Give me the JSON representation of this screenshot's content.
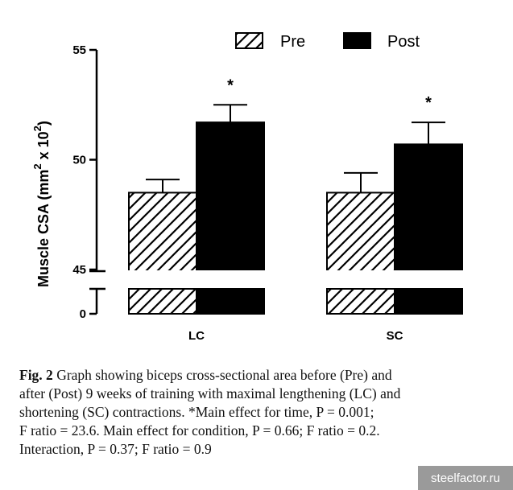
{
  "chart_data": {
    "type": "bar",
    "title": "",
    "xlabel": "",
    "ylabel": "Muscle CSA (mm",
    "ylabel_sup1": "2",
    "ylabel_mid": " x 10",
    "ylabel_sup2": "2",
    "ylabel_end": ")",
    "categories": [
      "LC",
      "SC"
    ],
    "series": [
      {
        "name": "Pre",
        "values": [
          48.5,
          48.5
        ],
        "errors": [
          0.6,
          0.9
        ],
        "pattern": "hatched",
        "color": "#ffffff"
      },
      {
        "name": "Post",
        "values": [
          51.7,
          50.7
        ],
        "errors": [
          0.8,
          1.0
        ],
        "pattern": "solid",
        "color": "#000000"
      }
    ],
    "y_ticks": [
      0,
      45,
      50,
      55
    ],
    "ylim_upper": [
      45,
      55
    ],
    "axis_break": true,
    "legend_position": "top",
    "significance_markers": [
      "*",
      "*"
    ]
  },
  "caption": {
    "fig_label": "Fig. 2",
    "line1": " Graph showing biceps cross-sectional area before (Pre) and",
    "line2": "after (Post) 9 weeks of training with maximal lengthening (LC) and",
    "line3": "shortening (SC) contractions. *Main effect for time, P = 0.001;",
    "line4": "F ratio = 23.6. Main effect for condition, P = 0.66; F ratio = 0.2.",
    "line5": "Interaction, P = 0.37; F ratio = 0.9"
  },
  "watermark": "steelfactor.ru"
}
